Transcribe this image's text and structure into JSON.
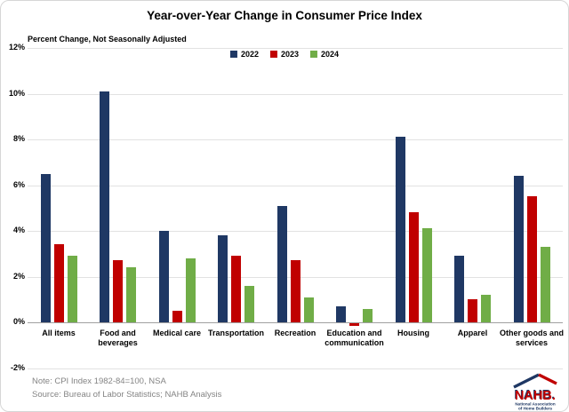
{
  "notes": [
    "Note: CPI Index 1982-84=100, NSA",
    "Source: Bureau of Labor Statistics; NAHB Analysis"
  ],
  "logo": {
    "name": "NAHB.",
    "subtext_line1": "National Association",
    "subtext_line2": "of Home Builders",
    "brand_red": "#C00000",
    "brand_blue": "#1F3864"
  },
  "colors": {
    "bar_2022": "#1F3864",
    "bar_2023": "#C00000",
    "bar_2024": "#70AD47",
    "gridline": "#e2e2e2",
    "zero_axis": "#a0a0a0",
    "note_text": "#848484"
  },
  "chart_data": {
    "type": "bar",
    "title": "Year-over-Year Change in Consumer Price Index",
    "subtitle": "Percent Change, Not Seasonally Adjusted",
    "categories": [
      "All items",
      "Food and beverages",
      "Medical care",
      "Transportation",
      "Recreation",
      "Education and communication",
      "Housing",
      "Apparel",
      "Other goods and services"
    ],
    "series": [
      {
        "name": "2022",
        "color": "#1F3864",
        "values": [
          6.5,
          10.1,
          4.0,
          3.8,
          5.1,
          0.7,
          8.1,
          2.9,
          6.4
        ]
      },
      {
        "name": "2023",
        "color": "#C00000",
        "values": [
          3.4,
          2.7,
          0.5,
          2.9,
          2.7,
          -0.1,
          4.8,
          1.0,
          5.5
        ]
      },
      {
        "name": "2024",
        "color": "#70AD47",
        "values": [
          2.9,
          2.4,
          2.8,
          1.6,
          1.1,
          0.6,
          4.1,
          1.2,
          3.3
        ]
      }
    ],
    "ylim": [
      -2,
      12
    ],
    "ytick_step": 2,
    "ytick_suffix": "%",
    "grid": true,
    "legend_position": "top-center",
    "xlabel": "",
    "ylabel": ""
  }
}
